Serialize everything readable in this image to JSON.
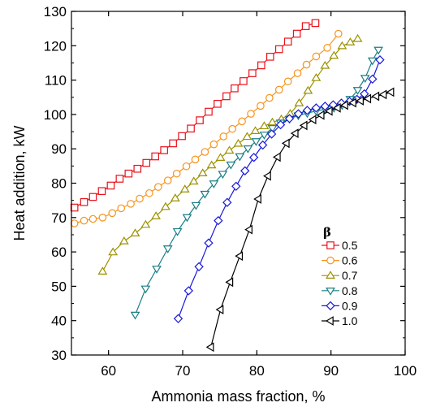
{
  "chart_data": {
    "type": "line",
    "title": "",
    "xlabel": "Ammonia mass fraction, %",
    "ylabel": "Heat addition, kW",
    "xlim": [
      55,
      100
    ],
    "ylim": [
      30,
      130
    ],
    "xticks": [
      60,
      70,
      80,
      90,
      100
    ],
    "yticks": [
      30,
      40,
      50,
      60,
      70,
      80,
      90,
      100,
      110,
      120,
      130
    ],
    "grid": false,
    "legend": {
      "title": "β",
      "position": "center-right"
    },
    "series": [
      {
        "name": "0.5",
        "color": "#e8121b",
        "marker": "square",
        "x": [
          55.4,
          56.7,
          57.9,
          59.1,
          60.3,
          61.5,
          62.7,
          63.9,
          65.1,
          66.3,
          67.5,
          68.7,
          69.9,
          71.1,
          72.3,
          73.5,
          74.7,
          75.9,
          77.0,
          78.2,
          79.4,
          80.6,
          81.8,
          83.0,
          84.2,
          85.4,
          86.6,
          87.9
        ],
        "values": [
          72.9,
          74.5,
          76.0,
          77.7,
          79.3,
          81.3,
          82.8,
          84.2,
          85.9,
          87.8,
          89.6,
          91.6,
          93.7,
          95.9,
          98.3,
          100.8,
          103.1,
          105.3,
          107.6,
          109.7,
          112.0,
          114.3,
          116.8,
          119.0,
          121.2,
          123.5,
          125.7,
          126.6
        ]
      },
      {
        "name": "0.6",
        "color": "#f7941d",
        "marker": "circle",
        "x": [
          55.4,
          56.7,
          57.9,
          59.2,
          60.5,
          61.7,
          63.0,
          64.2,
          65.5,
          66.7,
          68.0,
          69.2,
          70.5,
          71.7,
          73.0,
          74.2,
          75.5,
          76.7,
          78.0,
          79.2,
          80.5,
          81.7,
          83.0,
          84.2,
          85.5,
          86.7,
          88.0,
          89.5,
          91.0
        ],
        "values": [
          68.3,
          69.1,
          69.6,
          70.0,
          71.3,
          72.7,
          74.0,
          75.5,
          77.1,
          78.9,
          80.8,
          82.8,
          84.9,
          86.9,
          89.1,
          91.3,
          93.6,
          95.8,
          98.0,
          100.2,
          102.5,
          104.8,
          107.2,
          109.6,
          112.0,
          114.5,
          116.9,
          119.4,
          123.5
        ]
      },
      {
        "name": "0.7",
        "color": "#9b9100",
        "marker": "triangle-up",
        "x": [
          59.2,
          60.6,
          62.1,
          63.6,
          65.0,
          66.4,
          67.7,
          69.0,
          70.3,
          71.5,
          72.7,
          73.9,
          75.1,
          76.3,
          77.5,
          78.7,
          79.8,
          81.0,
          82.1,
          83.3,
          84.5,
          85.7,
          86.9,
          88.0,
          89.2,
          90.4,
          91.5,
          92.6,
          93.6
        ],
        "values": [
          54.3,
          59.9,
          63.1,
          65.4,
          67.9,
          70.4,
          73.1,
          75.6,
          78.2,
          80.5,
          82.9,
          85.2,
          87.4,
          89.5,
          91.5,
          93.5,
          95.2,
          96.6,
          97.7,
          98.6,
          100.2,
          103.3,
          106.9,
          110.6,
          114.2,
          117.1,
          119.9,
          121.0,
          122.0
        ]
      },
      {
        "name": "0.8",
        "color": "#1a7f85",
        "marker": "triangle-down",
        "x": [
          63.6,
          65.0,
          66.5,
          68.0,
          69.3,
          70.6,
          71.8,
          73.0,
          74.2,
          75.4,
          76.5,
          77.7,
          78.8,
          79.9,
          81.0,
          82.1,
          83.2,
          84.4,
          85.6,
          86.8,
          88.0,
          89.2,
          90.4,
          91.5,
          92.6,
          93.6,
          94.6,
          95.6,
          96.4
        ],
        "values": [
          41.7,
          49.3,
          55.1,
          61.0,
          66.0,
          70.1,
          73.6,
          76.9,
          79.9,
          82.7,
          85.4,
          87.8,
          90.1,
          92.2,
          94.1,
          96.0,
          97.6,
          98.7,
          99.7,
          100.4,
          101.0,
          101.5,
          101.9,
          102.7,
          104.5,
          107.1,
          110.6,
          115.7,
          118.8
        ]
      },
      {
        "name": "0.9",
        "color": "#1a1ad8",
        "marker": "diamond",
        "x": [
          69.4,
          70.8,
          72.2,
          73.5,
          74.8,
          76.0,
          77.2,
          78.4,
          79.6,
          80.8,
          82.0,
          83.2,
          84.4,
          85.6,
          86.8,
          88.0,
          89.2,
          90.3,
          91.4,
          92.5,
          93.5,
          94.5,
          95.6,
          96.6
        ],
        "values": [
          40.6,
          48.7,
          55.7,
          62.6,
          69.1,
          74.4,
          79.1,
          83.6,
          87.5,
          91.1,
          94.3,
          97.0,
          98.8,
          100.2,
          101.2,
          101.9,
          102.4,
          102.8,
          103.3,
          103.8,
          104.4,
          106.0,
          110.3,
          115.9
        ]
      },
      {
        "name": "1.0",
        "color": "#000000",
        "marker": "triangle-left",
        "x": [
          73.8,
          75.1,
          76.4,
          77.7,
          79.0,
          80.2,
          81.5,
          82.8,
          84.0,
          85.2,
          86.4,
          87.6,
          88.7,
          89.8,
          90.9,
          91.9,
          93.0,
          94.0,
          95.0,
          96.1,
          97.1,
          98.1
        ],
        "values": [
          32.3,
          43.2,
          51.2,
          58.8,
          66.5,
          75.4,
          82.1,
          87.6,
          91.6,
          94.5,
          96.8,
          98.5,
          99.8,
          101.0,
          101.9,
          102.7,
          103.4,
          104.0,
          104.6,
          105.3,
          105.8,
          106.5
        ]
      }
    ]
  }
}
